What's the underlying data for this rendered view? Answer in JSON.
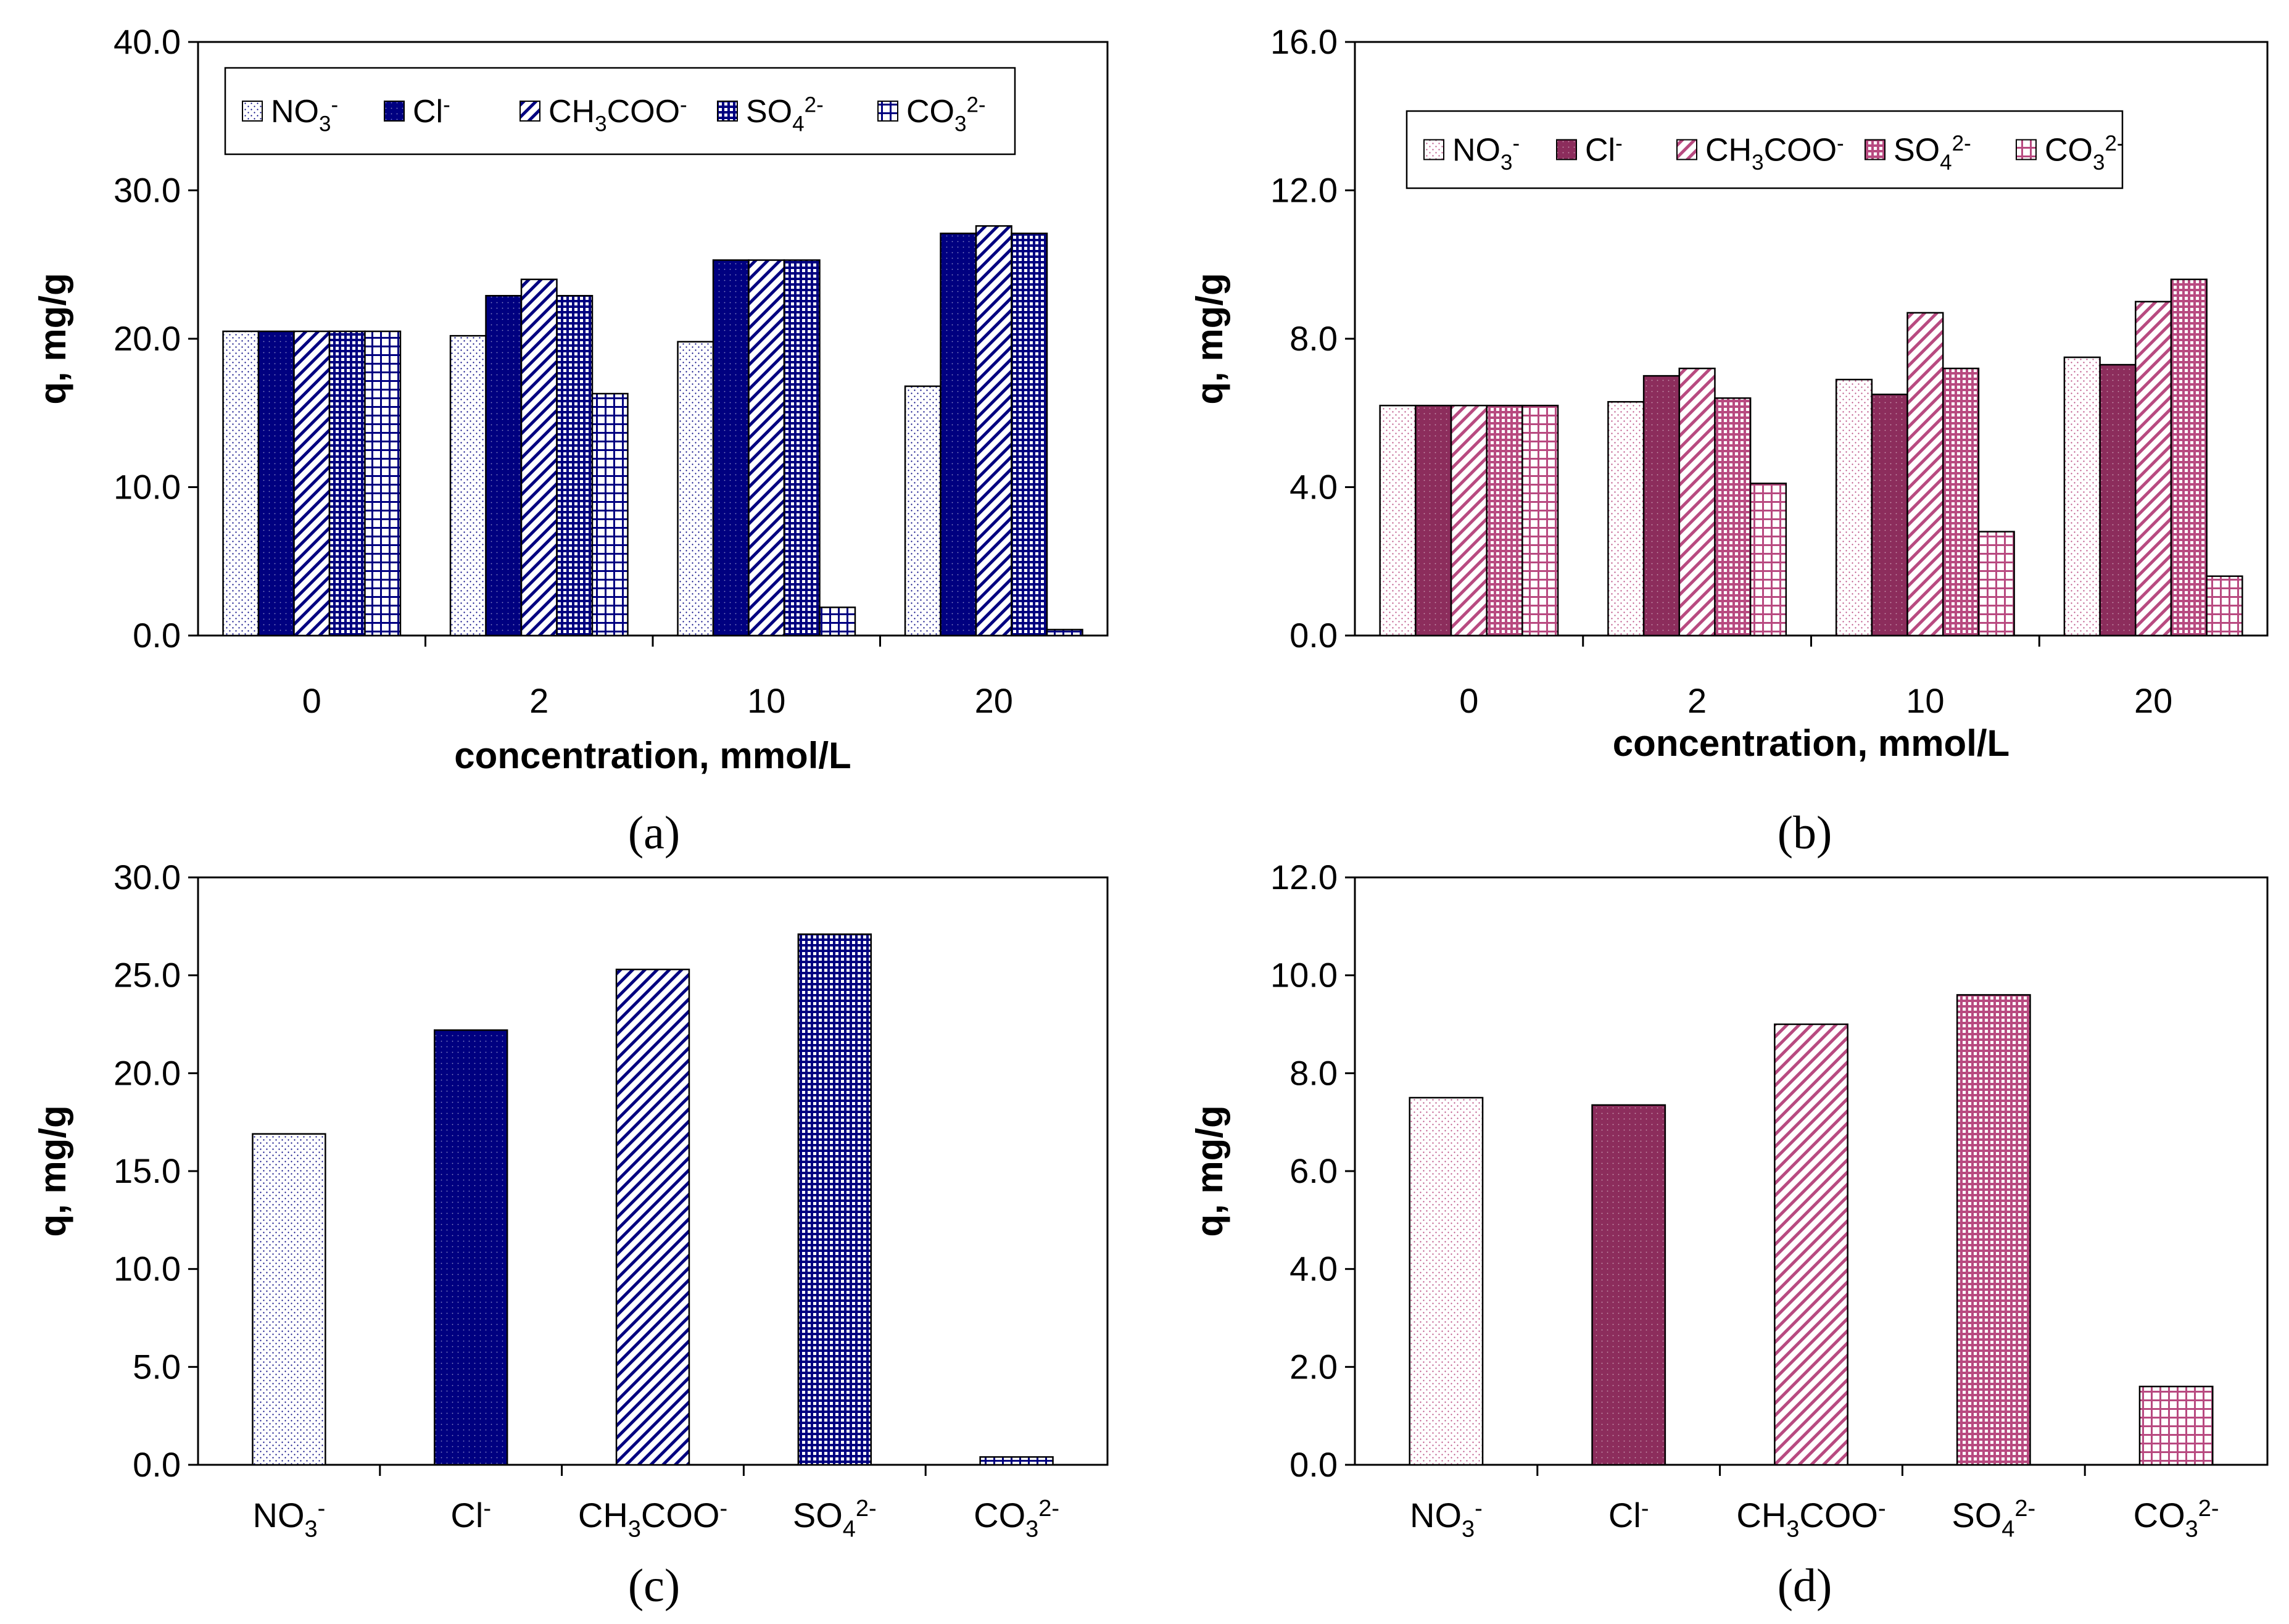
{
  "colors": {
    "blue": "#000080",
    "maroon": "#8c2d5c",
    "pink": "#b84a80"
  },
  "chart_data": [
    {
      "panel": "(a)",
      "type": "bar",
      "xlabel": "concentration, mmol/L",
      "ylabel": "q, mg/g",
      "ylim": [
        0,
        40
      ],
      "yticks": [
        "0.0",
        "10.0",
        "20.0",
        "30.0",
        "40.0"
      ],
      "categories": [
        "0",
        "2",
        "10",
        "20"
      ],
      "legend": "top-left",
      "series": [
        {
          "name": "NO3-",
          "values": [
            20.5,
            20.2,
            19.8,
            16.8
          ]
        },
        {
          "name": "Cl-",
          "values": [
            20.5,
            22.9,
            25.3,
            27.1
          ]
        },
        {
          "name": "CH3COO-",
          "values": [
            20.5,
            24.0,
            25.3,
            27.6
          ]
        },
        {
          "name": "SO42-",
          "values": [
            20.5,
            22.9,
            25.3,
            27.1
          ]
        },
        {
          "name": "CO32-",
          "values": [
            20.5,
            16.3,
            1.9,
            0.4
          ]
        }
      ]
    },
    {
      "panel": "(b)",
      "type": "bar",
      "xlabel": "concentration, mmol/L",
      "ylabel": "q, mg/g",
      "ylim": [
        0,
        16
      ],
      "yticks": [
        "0.0",
        "4.0",
        "8.0",
        "12.0",
        "16.0"
      ],
      "categories": [
        "0",
        "2",
        "10",
        "20"
      ],
      "legend": "top-left",
      "series": [
        {
          "name": "NO3-",
          "values": [
            6.2,
            6.3,
            6.9,
            7.5
          ]
        },
        {
          "name": "Cl-",
          "values": [
            6.2,
            7.0,
            6.5,
            7.3
          ]
        },
        {
          "name": "CH3COO-",
          "values": [
            6.2,
            7.2,
            8.7,
            9.0
          ]
        },
        {
          "name": "SO42-",
          "values": [
            6.2,
            6.4,
            7.2,
            9.6
          ]
        },
        {
          "name": "CO32-",
          "values": [
            6.2,
            4.1,
            2.8,
            1.6
          ]
        }
      ]
    },
    {
      "panel": "(c)",
      "type": "bar",
      "xlabel": "",
      "ylabel": "q, mg/g",
      "ylim": [
        0,
        30
      ],
      "yticks": [
        "0.0",
        "5.0",
        "10.0",
        "15.0",
        "20.0",
        "25.0",
        "30.0"
      ],
      "categories": [
        "NO3-",
        "Cl-",
        "CH3COO-",
        "SO42-",
        "CO32-"
      ],
      "values": [
        16.9,
        22.2,
        25.3,
        27.1,
        0.4
      ]
    },
    {
      "panel": "(d)",
      "type": "bar",
      "xlabel": "",
      "ylabel": "q, mg/g",
      "ylim": [
        0,
        12
      ],
      "yticks": [
        "0.0",
        "2.0",
        "4.0",
        "6.0",
        "8.0",
        "10.0",
        "12.0"
      ],
      "categories": [
        "NO3-",
        "Cl-",
        "CH3COO-",
        "SO42-",
        "CO32-"
      ],
      "values": [
        7.5,
        7.35,
        9.0,
        9.6,
        1.6
      ]
    }
  ]
}
